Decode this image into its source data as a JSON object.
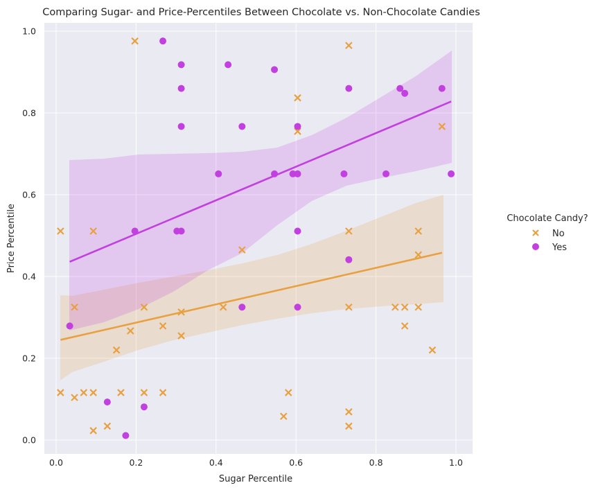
{
  "chart_data": {
    "type": "scatter",
    "title": "Comparing Sugar- and Price-Percentiles Between Chocolate vs. Non-Chocolate Candies",
    "xlabel": "Sugar Percentile",
    "ylabel": "Price Percentile",
    "xlim": [
      -0.05,
      1.03
    ],
    "ylim": [
      -0.04,
      1.02
    ],
    "xticks": [
      "0.0",
      "0.2",
      "0.4",
      "0.6",
      "0.8",
      "1.0"
    ],
    "yticks": [
      "0.0",
      "0.2",
      "0.4",
      "0.6",
      "0.8",
      "1.0"
    ],
    "grid": true,
    "legend": {
      "title": "Chocolate Candy?",
      "placement": "right"
    },
    "series": [
      {
        "name": "No",
        "marker": "x",
        "color": "#e8a040",
        "points": [
          [
            0.011,
            0.116
          ],
          [
            0.046,
            0.104
          ],
          [
            0.069,
            0.116
          ],
          [
            0.093,
            0.116
          ],
          [
            0.093,
            0.023
          ],
          [
            0.128,
            0.034
          ],
          [
            0.162,
            0.116
          ],
          [
            0.186,
            0.267
          ],
          [
            0.151,
            0.22
          ],
          [
            0.197,
            0.976
          ],
          [
            0.22,
            0.116
          ],
          [
            0.22,
            0.325
          ],
          [
            0.267,
            0.279
          ],
          [
            0.267,
            0.116
          ],
          [
            0.313,
            0.255
          ],
          [
            0.313,
            0.313
          ],
          [
            0.011,
            0.511
          ],
          [
            0.046,
            0.325
          ],
          [
            0.093,
            0.511
          ],
          [
            0.418,
            0.325
          ],
          [
            0.465,
            0.465
          ],
          [
            0.569,
            0.058
          ],
          [
            0.581,
            0.116
          ],
          [
            0.604,
            0.837
          ],
          [
            0.604,
            0.755
          ],
          [
            0.732,
            0.965
          ],
          [
            0.732,
            0.511
          ],
          [
            0.732,
            0.325
          ],
          [
            0.732,
            0.069
          ],
          [
            0.732,
            0.034
          ],
          [
            0.848,
            0.325
          ],
          [
            0.872,
            0.325
          ],
          [
            0.872,
            0.279
          ],
          [
            0.906,
            0.325
          ],
          [
            0.906,
            0.511
          ],
          [
            0.906,
            0.453
          ],
          [
            0.941,
            0.22
          ],
          [
            0.965,
            0.767
          ]
        ],
        "fit": {
          "x0": 0.011,
          "y0": 0.245,
          "x1": 0.965,
          "y1": 0.458
        }
      },
      {
        "name": "Yes",
        "marker": "o",
        "color": "#c23fe0",
        "points": [
          [
            0.034,
            0.279
          ],
          [
            0.128,
            0.093
          ],
          [
            0.174,
            0.011
          ],
          [
            0.197,
            0.511
          ],
          [
            0.22,
            0.081
          ],
          [
            0.267,
            0.976
          ],
          [
            0.302,
            0.511
          ],
          [
            0.313,
            0.511
          ],
          [
            0.313,
            0.918
          ],
          [
            0.313,
            0.86
          ],
          [
            0.313,
            0.767
          ],
          [
            0.406,
            0.651
          ],
          [
            0.43,
            0.918
          ],
          [
            0.465,
            0.767
          ],
          [
            0.465,
            0.325
          ],
          [
            0.546,
            0.906
          ],
          [
            0.546,
            0.651
          ],
          [
            0.592,
            0.651
          ],
          [
            0.604,
            0.651
          ],
          [
            0.604,
            0.767
          ],
          [
            0.604,
            0.511
          ],
          [
            0.604,
            0.325
          ],
          [
            0.72,
            0.651
          ],
          [
            0.732,
            0.86
          ],
          [
            0.732,
            0.441
          ],
          [
            0.825,
            0.651
          ],
          [
            0.86,
            0.86
          ],
          [
            0.872,
            0.848
          ],
          [
            0.965,
            0.86
          ],
          [
            0.988,
            0.651
          ]
        ],
        "fit": {
          "x0": 0.034,
          "y0": 0.436,
          "x1": 0.988,
          "y1": 0.828
        }
      }
    ]
  }
}
